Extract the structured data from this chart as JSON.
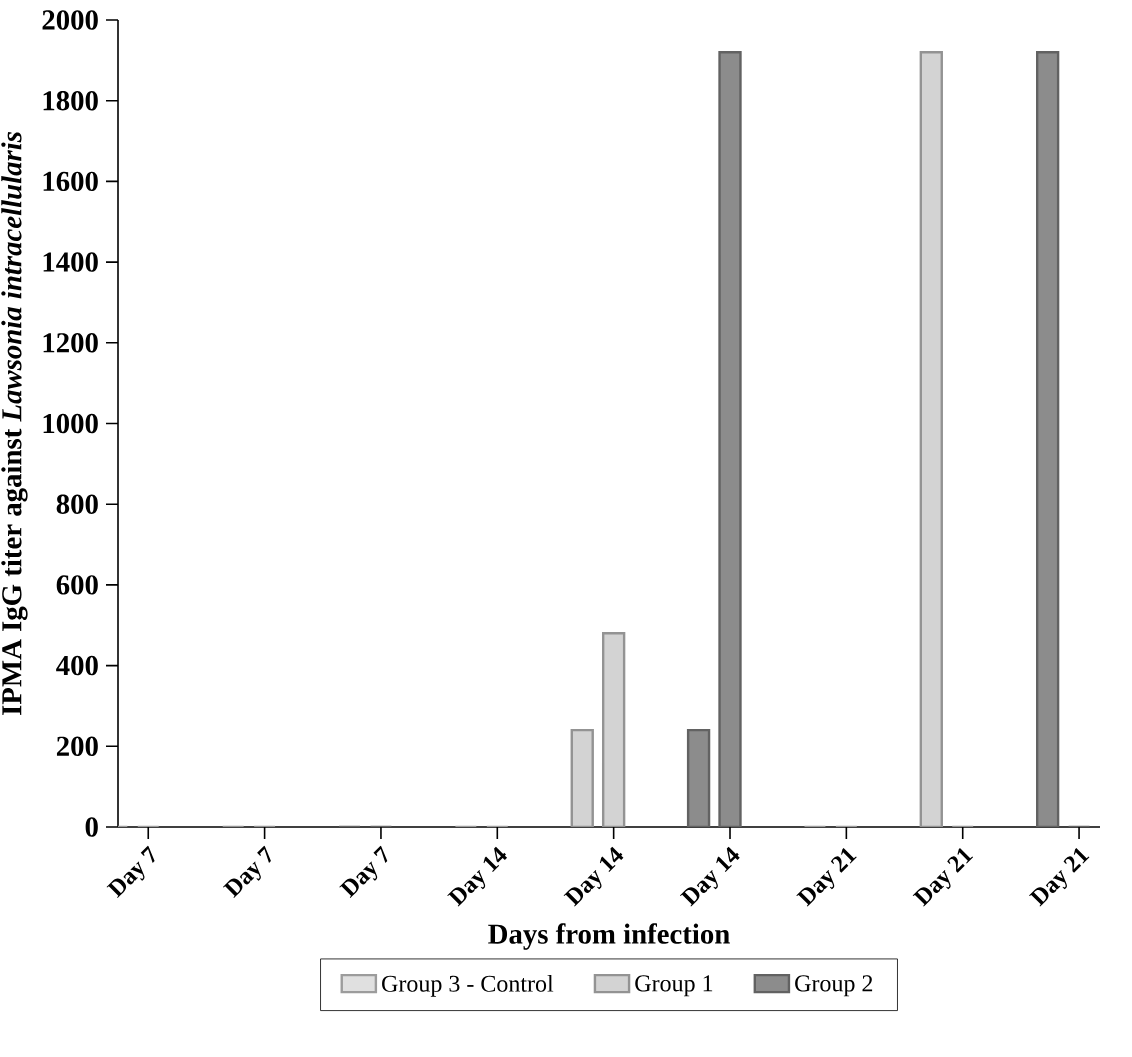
{
  "chart_data": {
    "type": "bar",
    "xlabel": "Days from infection",
    "ylabel": "IPMA IgG titer against *Lawsonia intracellularis*",
    "categories": [
      "Day 7",
      "Day 7",
      "Day 7",
      "Day 14",
      "Day 14",
      "Day 14",
      "Day 21",
      "Day 21",
      "Day 21"
    ],
    "ylim": [
      0,
      2000
    ],
    "yticks": [
      0,
      200,
      400,
      600,
      800,
      1000,
      1200,
      1400,
      1600,
      1800,
      2000
    ],
    "legend": "bottom",
    "grid": false,
    "series": [
      {
        "name": "Group 3 - Control",
        "color": "#e0e0e0",
        "values": [
          0,
          null,
          null,
          0,
          null,
          null,
          0,
          null,
          null
        ]
      },
      {
        "color": "#e0e0e0",
        "values": [
          0,
          null,
          null,
          0,
          null,
          null,
          0,
          null,
          null
        ]
      },
      {
        "name": "Group 1",
        "color": "#d3d3d3",
        "values": [
          null,
          0,
          null,
          null,
          240,
          null,
          null,
          1920,
          null
        ]
      },
      {
        "color": "#d3d3d3",
        "values": [
          null,
          0,
          null,
          null,
          480,
          null,
          null,
          0,
          null
        ]
      },
      {
        "name": "Group 2",
        "color": "#8c8c8c",
        "values": [
          null,
          null,
          0,
          null,
          null,
          240,
          null,
          null,
          1920
        ]
      },
      {
        "color": "#8c8c8c",
        "values": [
          null,
          null,
          0,
          null,
          null,
          1920,
          null,
          null,
          0
        ]
      }
    ]
  }
}
